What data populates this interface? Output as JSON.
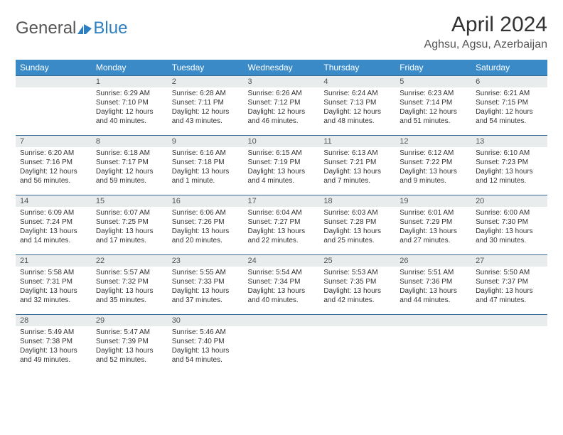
{
  "logo": {
    "text_gray": "General",
    "text_blue": "Blue"
  },
  "title": "April 2024",
  "location": "Aghsu, Agsu, Azerbaijan",
  "colors": {
    "header_bg": "#3a8ac8",
    "header_text": "#ffffff",
    "daynum_bg": "#e9eced",
    "cell_border": "#3a6a8f",
    "text": "#333333",
    "logo_gray": "#555555",
    "logo_blue": "#2d7fc1"
  },
  "typography": {
    "title_fontsize": 30,
    "location_fontsize": 16,
    "header_fontsize": 12,
    "body_fontsize": 10
  },
  "day_headers": [
    "Sunday",
    "Monday",
    "Tuesday",
    "Wednesday",
    "Thursday",
    "Friday",
    "Saturday"
  ],
  "weeks": [
    [
      {
        "empty": true
      },
      {
        "n": "1",
        "sunrise": "6:29 AM",
        "sunset": "7:10 PM",
        "daylight": "12 hours and 40 minutes."
      },
      {
        "n": "2",
        "sunrise": "6:28 AM",
        "sunset": "7:11 PM",
        "daylight": "12 hours and 43 minutes."
      },
      {
        "n": "3",
        "sunrise": "6:26 AM",
        "sunset": "7:12 PM",
        "daylight": "12 hours and 46 minutes."
      },
      {
        "n": "4",
        "sunrise": "6:24 AM",
        "sunset": "7:13 PM",
        "daylight": "12 hours and 48 minutes."
      },
      {
        "n": "5",
        "sunrise": "6:23 AM",
        "sunset": "7:14 PM",
        "daylight": "12 hours and 51 minutes."
      },
      {
        "n": "6",
        "sunrise": "6:21 AM",
        "sunset": "7:15 PM",
        "daylight": "12 hours and 54 minutes."
      }
    ],
    [
      {
        "n": "7",
        "sunrise": "6:20 AM",
        "sunset": "7:16 PM",
        "daylight": "12 hours and 56 minutes."
      },
      {
        "n": "8",
        "sunrise": "6:18 AM",
        "sunset": "7:17 PM",
        "daylight": "12 hours and 59 minutes."
      },
      {
        "n": "9",
        "sunrise": "6:16 AM",
        "sunset": "7:18 PM",
        "daylight": "13 hours and 1 minute."
      },
      {
        "n": "10",
        "sunrise": "6:15 AM",
        "sunset": "7:19 PM",
        "daylight": "13 hours and 4 minutes."
      },
      {
        "n": "11",
        "sunrise": "6:13 AM",
        "sunset": "7:21 PM",
        "daylight": "13 hours and 7 minutes."
      },
      {
        "n": "12",
        "sunrise": "6:12 AM",
        "sunset": "7:22 PM",
        "daylight": "13 hours and 9 minutes."
      },
      {
        "n": "13",
        "sunrise": "6:10 AM",
        "sunset": "7:23 PM",
        "daylight": "13 hours and 12 minutes."
      }
    ],
    [
      {
        "n": "14",
        "sunrise": "6:09 AM",
        "sunset": "7:24 PM",
        "daylight": "13 hours and 14 minutes."
      },
      {
        "n": "15",
        "sunrise": "6:07 AM",
        "sunset": "7:25 PM",
        "daylight": "13 hours and 17 minutes."
      },
      {
        "n": "16",
        "sunrise": "6:06 AM",
        "sunset": "7:26 PM",
        "daylight": "13 hours and 20 minutes."
      },
      {
        "n": "17",
        "sunrise": "6:04 AM",
        "sunset": "7:27 PM",
        "daylight": "13 hours and 22 minutes."
      },
      {
        "n": "18",
        "sunrise": "6:03 AM",
        "sunset": "7:28 PM",
        "daylight": "13 hours and 25 minutes."
      },
      {
        "n": "19",
        "sunrise": "6:01 AM",
        "sunset": "7:29 PM",
        "daylight": "13 hours and 27 minutes."
      },
      {
        "n": "20",
        "sunrise": "6:00 AM",
        "sunset": "7:30 PM",
        "daylight": "13 hours and 30 minutes."
      }
    ],
    [
      {
        "n": "21",
        "sunrise": "5:58 AM",
        "sunset": "7:31 PM",
        "daylight": "13 hours and 32 minutes."
      },
      {
        "n": "22",
        "sunrise": "5:57 AM",
        "sunset": "7:32 PM",
        "daylight": "13 hours and 35 minutes."
      },
      {
        "n": "23",
        "sunrise": "5:55 AM",
        "sunset": "7:33 PM",
        "daylight": "13 hours and 37 minutes."
      },
      {
        "n": "24",
        "sunrise": "5:54 AM",
        "sunset": "7:34 PM",
        "daylight": "13 hours and 40 minutes."
      },
      {
        "n": "25",
        "sunrise": "5:53 AM",
        "sunset": "7:35 PM",
        "daylight": "13 hours and 42 minutes."
      },
      {
        "n": "26",
        "sunrise": "5:51 AM",
        "sunset": "7:36 PM",
        "daylight": "13 hours and 44 minutes."
      },
      {
        "n": "27",
        "sunrise": "5:50 AM",
        "sunset": "7:37 PM",
        "daylight": "13 hours and 47 minutes."
      }
    ],
    [
      {
        "n": "28",
        "sunrise": "5:49 AM",
        "sunset": "7:38 PM",
        "daylight": "13 hours and 49 minutes."
      },
      {
        "n": "29",
        "sunrise": "5:47 AM",
        "sunset": "7:39 PM",
        "daylight": "13 hours and 52 minutes."
      },
      {
        "n": "30",
        "sunrise": "5:46 AM",
        "sunset": "7:40 PM",
        "daylight": "13 hours and 54 minutes."
      },
      {
        "empty": true
      },
      {
        "empty": true
      },
      {
        "empty": true
      },
      {
        "empty": true
      }
    ]
  ],
  "labels": {
    "sunrise_prefix": "Sunrise: ",
    "sunset_prefix": "Sunset: ",
    "daylight_prefix": "Daylight: "
  }
}
